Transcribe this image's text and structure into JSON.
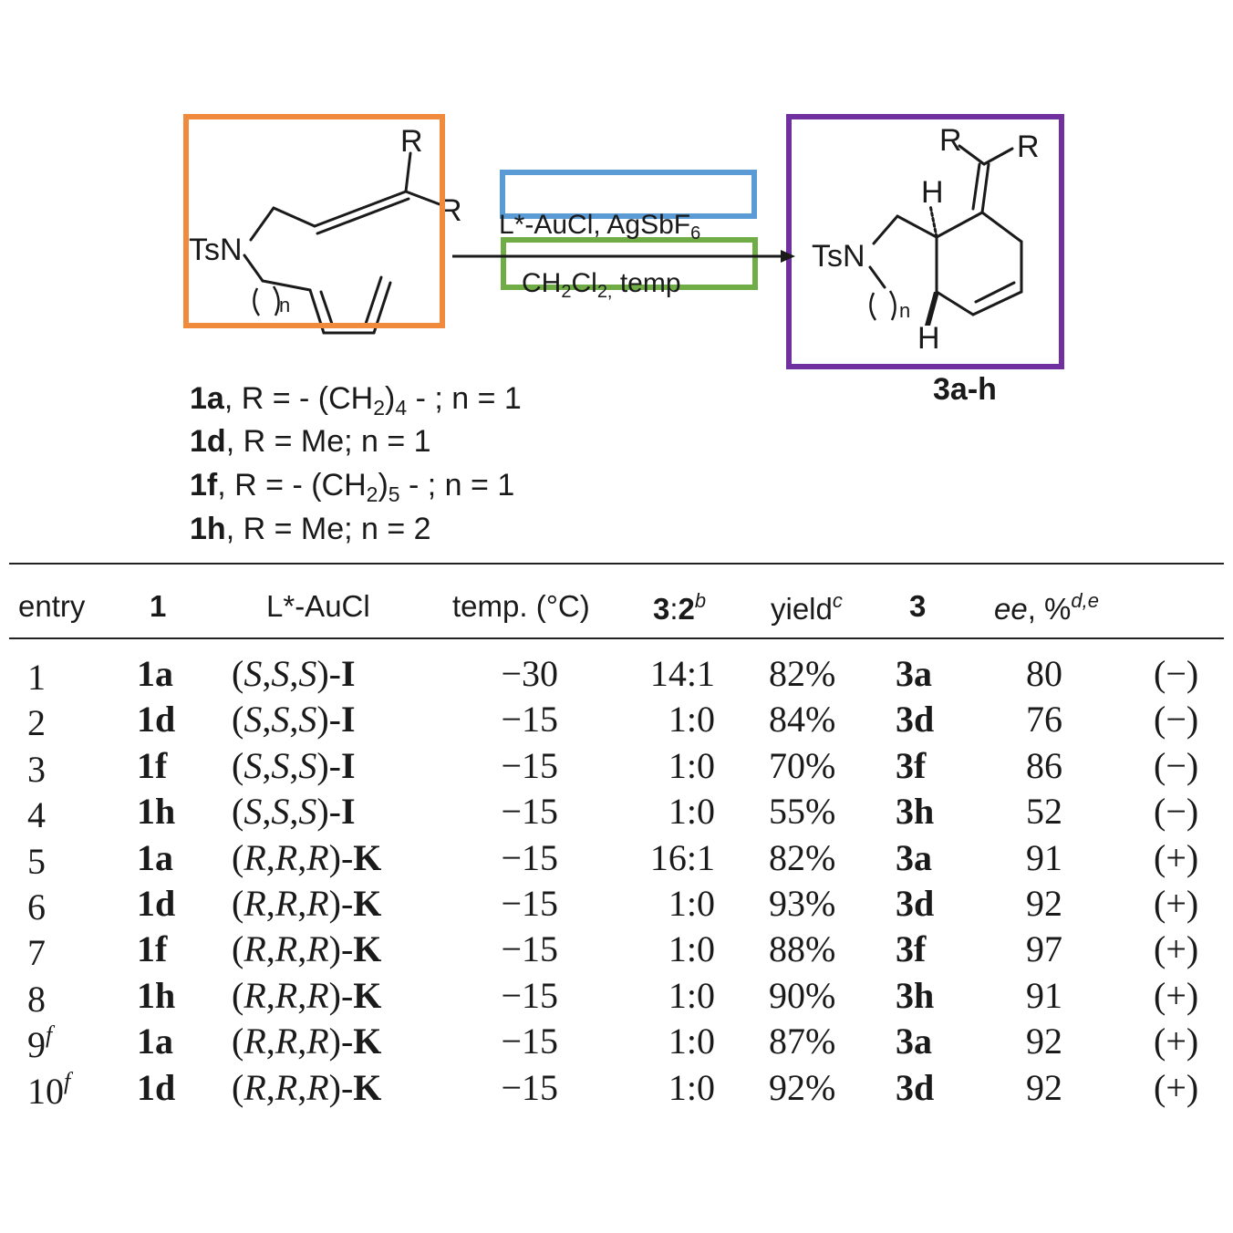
{
  "scheme": {
    "reactant": {
      "group_ts": "TsN",
      "substituent_r": "R",
      "ring_index": "n"
    },
    "conditions": {
      "line1": "L*-AuCl, AgSbF",
      "line1_sub": "6",
      "line2_a": "CH",
      "line2_sub1": "2",
      "line2_b": "Cl",
      "line2_sub2": "2,",
      "line2_c": " temp"
    },
    "product": {
      "group_ts": "TsN",
      "substituent_r": "R",
      "hydrogen": "H",
      "ring_index": "n",
      "label": "3a-h"
    },
    "substrates": [
      {
        "id": "1a",
        "sep": ", ",
        "text": "R = - (CH",
        "sub": "2",
        "tail_sub": "4",
        "rest": " - ; n = 1"
      },
      {
        "id": "1d",
        "text": ", R =   Me; n = 1"
      },
      {
        "id": "1f",
        "sep": ",  ",
        "text": "R = - (CH",
        "sub": "2",
        "tail_sub": "5",
        "rest": " - ; n = 1"
      },
      {
        "id": "1h",
        "text": ", R =   Me; n = 2"
      }
    ],
    "highlight_colors": {
      "reactant_box": "#f08a3c",
      "catalyst_box": "#5b9bd5",
      "solvent_box": "#70ad47",
      "product_box": "#7030a0"
    }
  },
  "table": {
    "headers": {
      "entry": "entry",
      "substrate": "1",
      "ligand": "L*-AuCl",
      "temp": "temp. (°C)",
      "ratio_a": "3",
      "ratio_b": ":",
      "ratio_c": "2",
      "ratio_sup": "b",
      "yield": "yield",
      "yield_sup": "c",
      "product": "3",
      "ee": "ee",
      "ee_rest": ", %",
      "ee_sup": "d,e"
    },
    "rows": [
      {
        "entry": "1",
        "sup": "",
        "substrate": "1a",
        "config": "S,S,S",
        "letters": [
          "S",
          "S",
          "S"
        ],
        "ligand": "I",
        "temp": "−30",
        "ratio": "14:1",
        "yield": "82%",
        "product": "3a",
        "ee": "80",
        "sign": "(−)"
      },
      {
        "entry": "2",
        "sup": "",
        "substrate": "1d",
        "config": "S,S,S",
        "letters": [
          "S",
          "S",
          "S"
        ],
        "ligand": "I",
        "temp": "−15",
        "ratio": "1:0",
        "yield": "84%",
        "product": "3d",
        "ee": "76",
        "sign": "(−)"
      },
      {
        "entry": "3",
        "sup": "",
        "substrate": "1f",
        "config": "S,S,S",
        "letters": [
          "S",
          "S",
          "S"
        ],
        "ligand": "I",
        "temp": "−15",
        "ratio": "1:0",
        "yield": "70%",
        "product": "3f",
        "ee": "86",
        "sign": "(−)"
      },
      {
        "entry": "4",
        "sup": "",
        "substrate": "1h",
        "config": "S,S,S",
        "letters": [
          "S",
          "S",
          "S"
        ],
        "ligand": "I",
        "temp": "−15",
        "ratio": "1:0",
        "yield": "55%",
        "product": "3h",
        "ee": "52",
        "sign": "(−)"
      },
      {
        "entry": "5",
        "sup": "",
        "substrate": "1a",
        "config": "R,R,R",
        "letters": [
          "R",
          "R",
          "R"
        ],
        "ligand": "K",
        "temp": "−15",
        "ratio": "16:1",
        "yield": "82%",
        "product": "3a",
        "ee": "91",
        "sign": "(+)"
      },
      {
        "entry": "6",
        "sup": "",
        "substrate": "1d",
        "config": "R,R,R",
        "letters": [
          "R",
          "R",
          "R"
        ],
        "ligand": "K",
        "temp": "−15",
        "ratio": "1:0",
        "yield": "93%",
        "product": "3d",
        "ee": "92",
        "sign": "(+)"
      },
      {
        "entry": "7",
        "sup": "",
        "substrate": "1f",
        "config": "R,R,R",
        "letters": [
          "R",
          "R",
          "R"
        ],
        "ligand": "K",
        "temp": "−15",
        "ratio": "1:0",
        "yield": "88%",
        "product": "3f",
        "ee": "97",
        "sign": "(+)"
      },
      {
        "entry": "8",
        "sup": "",
        "substrate": "1h",
        "config": "R,R,R",
        "letters": [
          "R",
          "R",
          "R"
        ],
        "ligand": "K",
        "temp": "−15",
        "ratio": "1:0",
        "yield": "90%",
        "product": "3h",
        "ee": "91",
        "sign": "(+)"
      },
      {
        "entry": "9",
        "sup": "f",
        "substrate": "1a",
        "config": "R,R,R",
        "letters": [
          "R",
          "R",
          "R"
        ],
        "ligand": "K",
        "temp": "−15",
        "ratio": "1:0",
        "yield": "87%",
        "product": "3a",
        "ee": "92",
        "sign": "(+)"
      },
      {
        "entry": "10",
        "sup": "f",
        "substrate": "1d",
        "config": "R,R,R",
        "letters": [
          "R",
          "R",
          "R"
        ],
        "ligand": "K",
        "temp": "−15",
        "ratio": "1:0",
        "yield": "92%",
        "product": "3d",
        "ee": "92",
        "sign": "(+)"
      }
    ]
  }
}
